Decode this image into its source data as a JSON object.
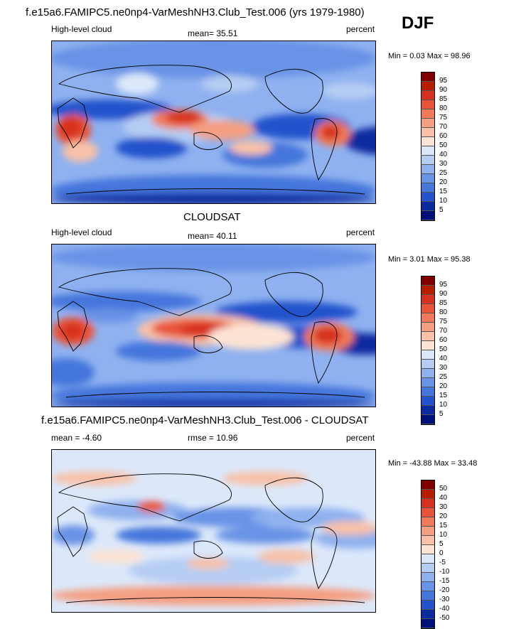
{
  "header": {
    "title_top": "f.e15a6.FAMIPC5.ne0np4-VarMeshNH3.Club_Test.006 (yrs 1979-1980)",
    "season": "DJF"
  },
  "panels": [
    {
      "id": "model",
      "left_label": "High-level cloud",
      "mean_text": "mean=  35.51",
      "units": "percent",
      "minmax": "Min =   0.03 Max =  98.96",
      "levels": [
        "95",
        "90",
        "85",
        "80",
        "75",
        "70",
        "60",
        "50",
        "40",
        "30",
        "25",
        "20",
        "15",
        "10",
        "5"
      ],
      "colors": [
        "#800000",
        "#b81d00",
        "#d7301f",
        "#e8543a",
        "#f07a5a",
        "#f49f82",
        "#f8c1a8",
        "#fde3d3",
        "#dce8fa",
        "#b6cdf3",
        "#8fb1ee",
        "#6993e6",
        "#4476dc",
        "#2452cc",
        "#0a2a9e",
        "#00107a"
      ]
    },
    {
      "id": "obs",
      "title": "CLOUDSAT",
      "left_label": "High-level cloud",
      "mean_text": "mean=  40.11",
      "units": "percent",
      "minmax": "Min =   3.01 Max =  95.38",
      "levels": [
        "95",
        "90",
        "85",
        "80",
        "75",
        "70",
        "60",
        "50",
        "40",
        "30",
        "25",
        "20",
        "15",
        "10",
        "5"
      ],
      "colors": [
        "#800000",
        "#b81d00",
        "#d7301f",
        "#e8543a",
        "#f07a5a",
        "#f49f82",
        "#f8c1a8",
        "#fde3d3",
        "#dce8fa",
        "#b6cdf3",
        "#8fb1ee",
        "#6993e6",
        "#4476dc",
        "#2452cc",
        "#0a2a9e",
        "#00107a"
      ]
    },
    {
      "id": "diff",
      "title": "f.e15a6.FAMIPC5.ne0np4-VarMeshNH3.Club_Test.006 - CLOUDSAT",
      "left_label": "mean =  -4.60",
      "mean_text": "rmse =  10.96",
      "units": "percent",
      "minmax": "Min = -43.88 Max =  33.48",
      "levels": [
        "50",
        "40",
        "30",
        "20",
        "15",
        "10",
        "5",
        "0",
        "-5",
        "-10",
        "-15",
        "-20",
        "-30",
        "-40",
        "-50"
      ],
      "colors": [
        "#800000",
        "#b81d00",
        "#d7301f",
        "#e8543a",
        "#f07a5a",
        "#f49f82",
        "#f8c1a8",
        "#fde3d3",
        "#dce8fa",
        "#b6cdf3",
        "#8fb1ee",
        "#6993e6",
        "#4476dc",
        "#2452cc",
        "#0a2a9e",
        "#00107a"
      ]
    }
  ]
}
